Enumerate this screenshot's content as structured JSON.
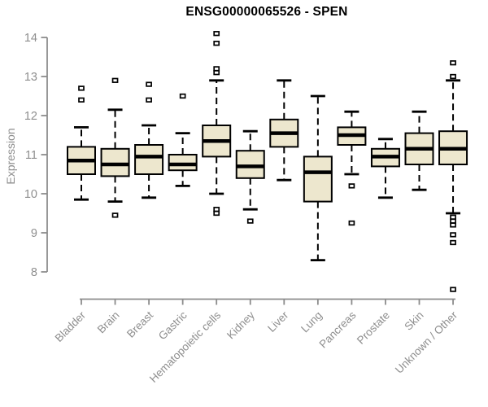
{
  "chart_data": {
    "type": "boxplot",
    "title": "ENSG00000065526 - SPEN",
    "ylabel": "Expression",
    "xlabel": "",
    "ylim": [
      8,
      14
    ],
    "yticks": [
      8,
      9,
      10,
      11,
      12,
      13,
      14
    ],
    "grid": false,
    "legend": "none",
    "colors": {
      "box_fill": "#EDE7CE",
      "box_stroke": "#000000",
      "median": "#000000",
      "whisker": "#000000",
      "axis": "#8C8C8C",
      "labels": "#8E8E8E",
      "title": "#000000",
      "background": "#FFFFFF"
    },
    "categories": [
      "Bladder",
      "Brain",
      "Breast",
      "Gastric",
      "Hematopoietic cells",
      "Kidney",
      "Liver",
      "Lung",
      "Pancreas",
      "Prostate",
      "Skin",
      "Unknown / Other"
    ],
    "series": [
      {
        "category": "Bladder",
        "whisker_low": 9.85,
        "q1": 10.5,
        "median": 10.85,
        "q3": 11.2,
        "whisker_high": 11.7,
        "outliers": [
          12.4,
          12.7
        ]
      },
      {
        "category": "Brain",
        "whisker_low": 9.8,
        "q1": 10.45,
        "median": 10.75,
        "q3": 11.15,
        "whisker_high": 12.15,
        "outliers": [
          9.45,
          12.9
        ]
      },
      {
        "category": "Breast",
        "whisker_low": 9.9,
        "q1": 10.5,
        "median": 10.95,
        "q3": 11.25,
        "whisker_high": 11.75,
        "outliers": [
          12.4,
          12.8
        ]
      },
      {
        "category": "Gastric",
        "whisker_low": 10.2,
        "q1": 10.6,
        "median": 10.75,
        "q3": 11.0,
        "whisker_high": 11.55,
        "outliers": [
          12.5
        ]
      },
      {
        "category": "Hematopoietic cells",
        "whisker_low": 10.0,
        "q1": 10.95,
        "median": 11.35,
        "q3": 11.75,
        "whisker_high": 12.9,
        "outliers": [
          9.5,
          9.6,
          13.1,
          13.2,
          13.85,
          14.1
        ]
      },
      {
        "category": "Kidney",
        "whisker_low": 9.6,
        "q1": 10.4,
        "median": 10.7,
        "q3": 11.1,
        "whisker_high": 11.6,
        "outliers": [
          9.3
        ]
      },
      {
        "category": "Liver",
        "whisker_low": 10.35,
        "q1": 11.2,
        "median": 11.55,
        "q3": 11.9,
        "whisker_high": 12.9,
        "outliers": []
      },
      {
        "category": "Lung",
        "whisker_low": 8.3,
        "q1": 9.8,
        "median": 10.55,
        "q3": 10.95,
        "whisker_high": 12.5,
        "outliers": []
      },
      {
        "category": "Pancreas",
        "whisker_low": 10.5,
        "q1": 11.25,
        "median": 11.5,
        "q3": 11.7,
        "whisker_high": 12.1,
        "outliers": [
          9.25,
          10.2
        ]
      },
      {
        "category": "Prostate",
        "whisker_low": 9.9,
        "q1": 10.7,
        "median": 10.95,
        "q3": 11.15,
        "whisker_high": 11.4,
        "outliers": []
      },
      {
        "category": "Skin",
        "whisker_low": 10.1,
        "q1": 10.75,
        "median": 11.15,
        "q3": 11.55,
        "whisker_high": 12.1,
        "outliers": []
      },
      {
        "category": "Unknown / Other",
        "whisker_low": 9.5,
        "q1": 10.75,
        "median": 11.15,
        "q3": 11.6,
        "whisker_high": 12.9,
        "outliers": [
          7.55,
          8.75,
          8.95,
          9.2,
          9.3,
          9.4,
          13.0,
          13.35
        ]
      }
    ]
  }
}
